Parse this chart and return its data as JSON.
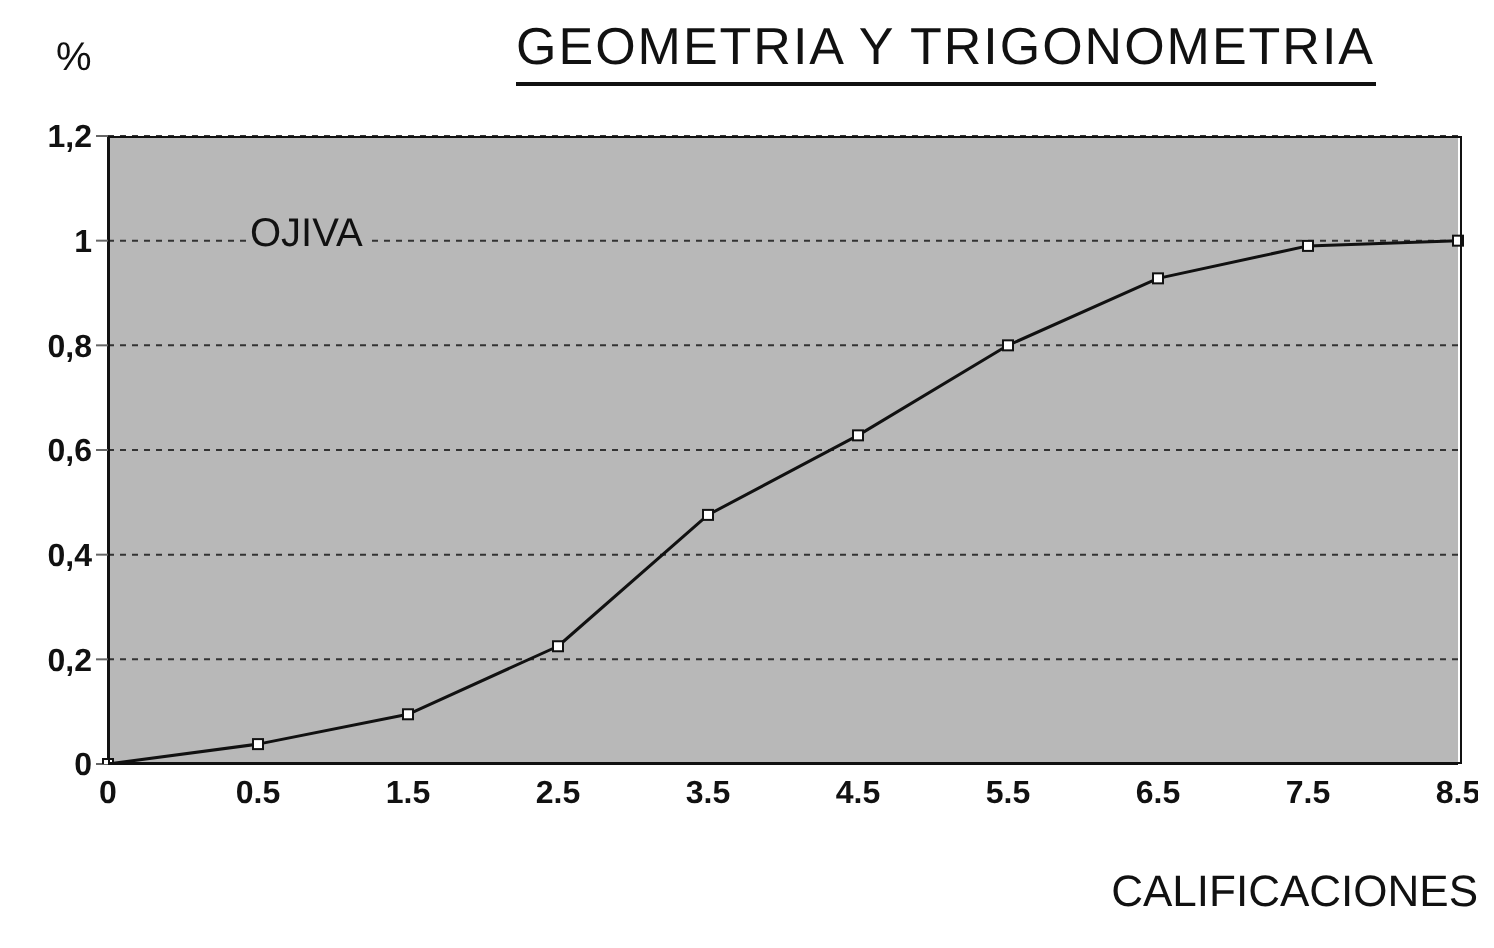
{
  "chart_data": {
    "type": "line",
    "title": "GEOMETRIA Y TRIGONOMETRIA",
    "ylabel": "%",
    "xlabel": "CALIFICACIONES",
    "annotations": [
      "OJIVA"
    ],
    "categories": [
      "0",
      "0.5",
      "1.5",
      "2.5",
      "3.5",
      "4.5",
      "5.5",
      "6.5",
      "7.5",
      "8.5"
    ],
    "series": [
      {
        "color": "#111111",
        "values": [
          0,
          0.038,
          0.095,
          0.225,
          0.476,
          0.628,
          0.8,
          0.928,
          0.99,
          1.0
        ]
      }
    ],
    "ylim": [
      0,
      1.2
    ],
    "yticks": [
      0,
      {
        "value": 0.2,
        "label": "0,2"
      },
      {
        "value": 0.4,
        "label": "0,4"
      },
      {
        "value": 0.6,
        "label": "0,6"
      },
      {
        "value": 0.8,
        "label": "0,8"
      },
      1,
      {
        "value": 1.2,
        "label": "1,2"
      }
    ],
    "grid": "y",
    "marker": "square",
    "line_style": "solid"
  }
}
